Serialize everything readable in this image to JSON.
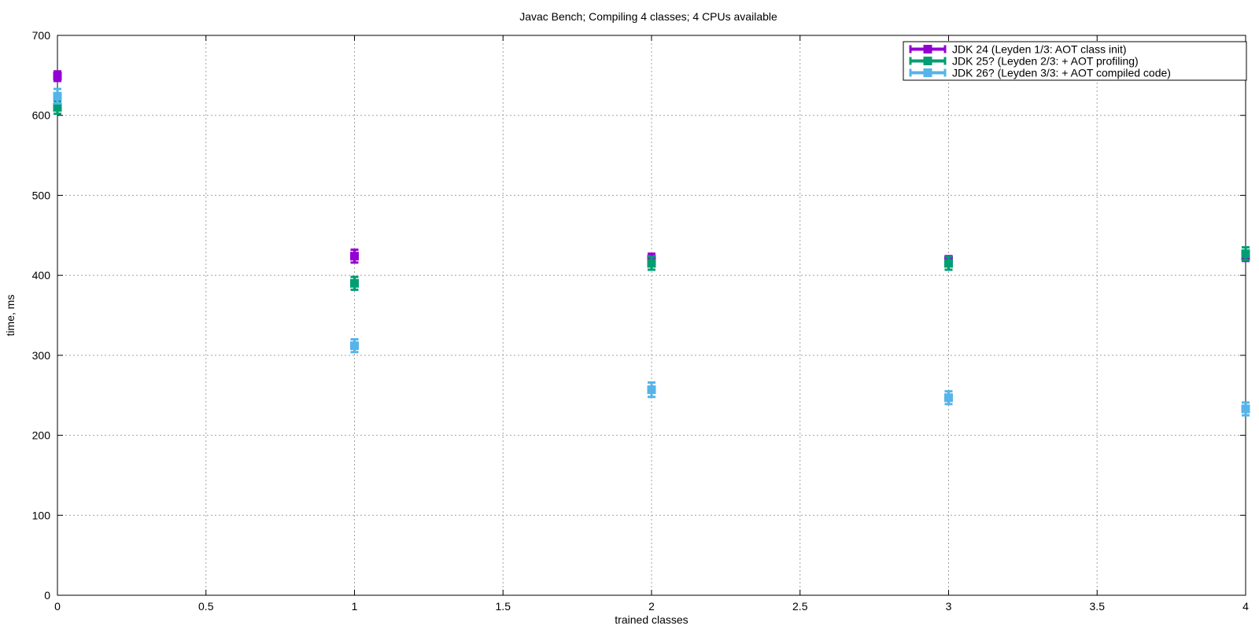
{
  "chart_data": {
    "type": "scatter",
    "title": "Javac Bench; Compiling 4 classes; 4 CPUs available",
    "xlabel": "trained classes",
    "ylabel": "time, ms",
    "xlim": [
      0,
      4
    ],
    "ylim": [
      0,
      700
    ],
    "xticks": [
      0,
      0.5,
      1,
      1.5,
      2,
      2.5,
      3,
      3.5,
      4
    ],
    "xtick_labels": [
      "0",
      "0.5",
      "1",
      "1.5",
      "2",
      "2.5",
      "3",
      "3.5",
      "4"
    ],
    "yticks": [
      0,
      100,
      200,
      300,
      400,
      500,
      600,
      700
    ],
    "ytick_labels": [
      "0",
      "100",
      "200",
      "300",
      "400",
      "500",
      "600",
      "700"
    ],
    "grid": true,
    "legend_position": "top-right",
    "series": [
      {
        "name": "JDK 24 (Leyden 1/3: AOT class init)",
        "color": "#9400d3",
        "points": [
          {
            "x": 0,
            "y": 649,
            "err": 6
          },
          {
            "x": 1,
            "y": 424,
            "err": 8
          },
          {
            "x": 2,
            "y": 420,
            "err": 7
          },
          {
            "x": 3,
            "y": 419,
            "err": 5
          },
          {
            "x": 4,
            "y": 424,
            "err": 6
          }
        ]
      },
      {
        "name": "JDK 25? (Leyden 2/3: + AOT profiling)",
        "color": "#009e73",
        "points": [
          {
            "x": 0,
            "y": 610,
            "err": 8
          },
          {
            "x": 1,
            "y": 390,
            "err": 8
          },
          {
            "x": 2,
            "y": 415,
            "err": 8
          },
          {
            "x": 3,
            "y": 415,
            "err": 8
          },
          {
            "x": 4,
            "y": 427,
            "err": 8
          }
        ]
      },
      {
        "name": "JDK 26? (Leyden 3/3: + AOT compiled code)",
        "color": "#56b4e9",
        "points": [
          {
            "x": 0,
            "y": 624,
            "err": 9
          },
          {
            "x": 1,
            "y": 312,
            "err": 8
          },
          {
            "x": 2,
            "y": 257,
            "err": 9
          },
          {
            "x": 3,
            "y": 247,
            "err": 8
          },
          {
            "x": 4,
            "y": 233,
            "err": 8
          }
        ]
      }
    ]
  }
}
